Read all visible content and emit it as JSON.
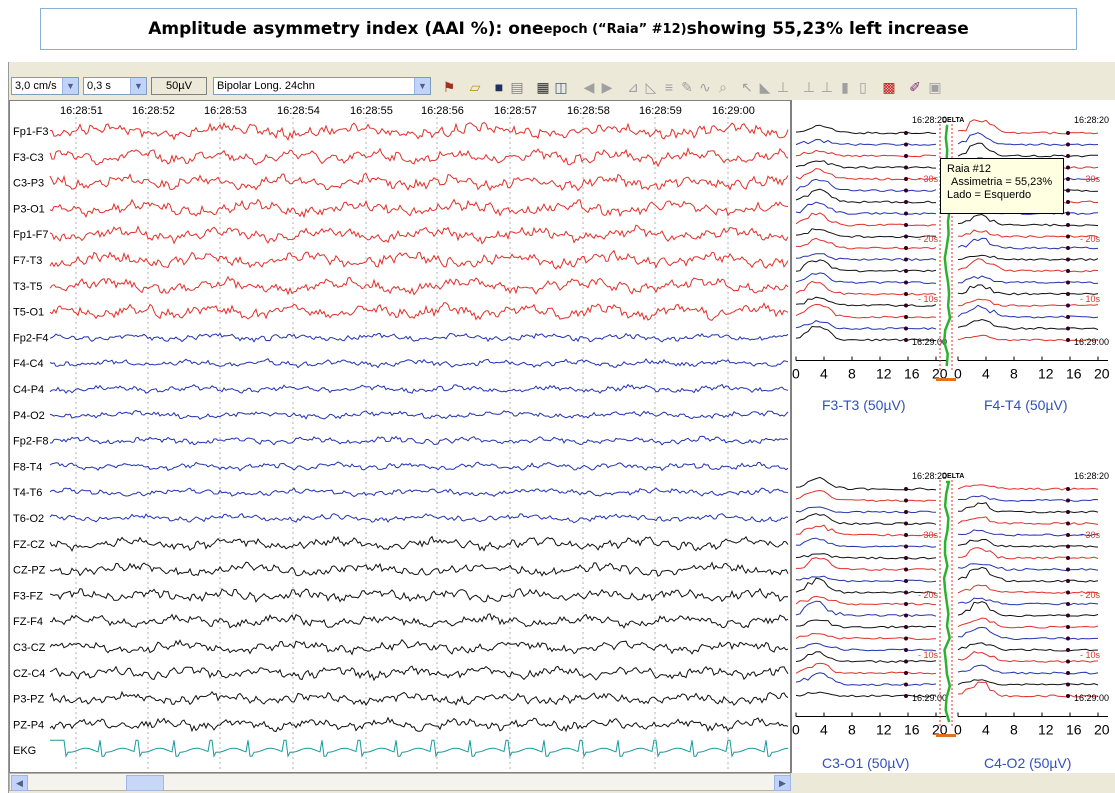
{
  "caption": {
    "part1": "Amplitude asymmetry index (AAI %): one ",
    "part2": "epoch (“Raia” #12)",
    "part3": " showing 55,23% left increase"
  },
  "toolbar": {
    "speed": "3,0 cm/s",
    "timeconst": "0,3 s",
    "gain": "50µV",
    "montage": "Bipolar Long. 24chn"
  },
  "times": [
    "16:28:51",
    "16:28:52",
    "16:28:53",
    "16:28:54",
    "16:28:55",
    "16:28:56",
    "16:28:57",
    "16:28:58",
    "16:28:59",
    "16:29:00"
  ],
  "channels": [
    {
      "name": "Fp1-F3",
      "color": "#e0302a"
    },
    {
      "name": "F3-C3",
      "color": "#e0302a"
    },
    {
      "name": "C3-P3",
      "color": "#e0302a"
    },
    {
      "name": "P3-O1",
      "color": "#e0302a"
    },
    {
      "name": "Fp1-F7",
      "color": "#e0302a"
    },
    {
      "name": "F7-T3",
      "color": "#e0302a"
    },
    {
      "name": "T3-T5",
      "color": "#e0302a"
    },
    {
      "name": "T5-O1",
      "color": "#e0302a"
    },
    {
      "name": "Fp2-F4",
      "color": "#2233b0"
    },
    {
      "name": "F4-C4",
      "color": "#2233b0"
    },
    {
      "name": "C4-P4",
      "color": "#2233b0"
    },
    {
      "name": "P4-O2",
      "color": "#2233b0"
    },
    {
      "name": "Fp2-F8",
      "color": "#2233b0"
    },
    {
      "name": "F8-T4",
      "color": "#2233b0"
    },
    {
      "name": "T4-T6",
      "color": "#2233b0"
    },
    {
      "name": "T6-O2",
      "color": "#2233b0"
    },
    {
      "name": "FZ-CZ",
      "color": "#111111"
    },
    {
      "name": "CZ-PZ",
      "color": "#111111"
    },
    {
      "name": "F3-FZ",
      "color": "#111111"
    },
    {
      "name": "FZ-F4",
      "color": "#111111"
    },
    {
      "name": "C3-CZ",
      "color": "#111111"
    },
    {
      "name": "CZ-C4",
      "color": "#111111"
    },
    {
      "name": "P3-PZ",
      "color": "#111111"
    },
    {
      "name": "PZ-P4",
      "color": "#111111"
    },
    {
      "name": "EKG",
      "color": "#1a9a9a"
    }
  ],
  "tooltip": {
    "line1": "Raia #12",
    "line2": "Assimetria = 55,23%",
    "line3": "Lado = Esquerdo"
  },
  "spectra": {
    "band": "DELTA",
    "top_time": "16:28:20",
    "bottom_time": "16:29:00",
    "scale_marks": [
      "30s",
      "20s",
      "10s"
    ],
    "axis_ticks": [
      "0",
      "4",
      "8",
      "12",
      "16",
      "20"
    ],
    "panels": [
      {
        "label": "F3-T3 (50µV)"
      },
      {
        "label": "F4-T4 (50µV)"
      },
      {
        "label": "C3-O1 (50µV)"
      },
      {
        "label": "C4-O2 (50µV)"
      }
    ]
  }
}
